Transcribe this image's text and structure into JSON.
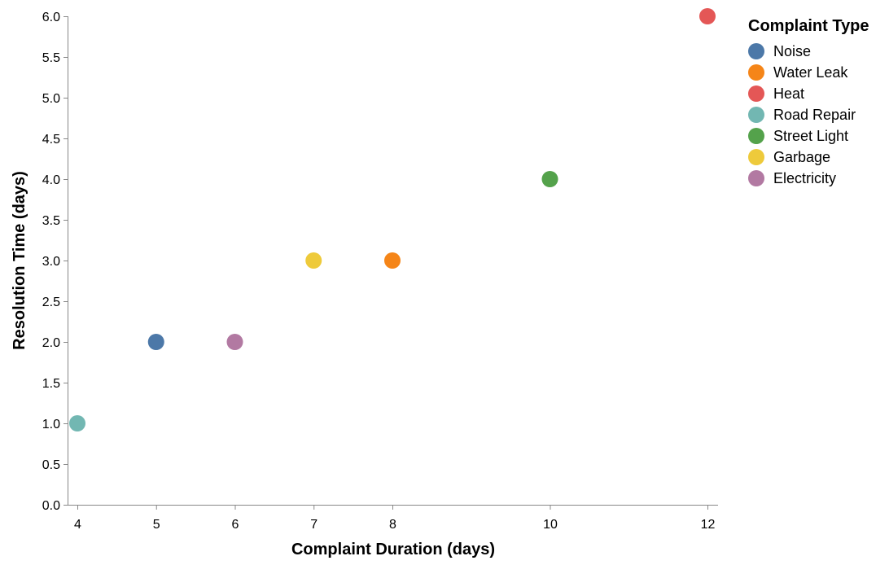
{
  "chart_data": {
    "type": "scatter",
    "xlabel": "Complaint Duration (days)",
    "ylabel": "Resolution Time (days)",
    "xticks": [
      4,
      5,
      6,
      7,
      8,
      10,
      12
    ],
    "yticks": [
      "0.0",
      "0.5",
      "1.0",
      "1.5",
      "2.0",
      "2.5",
      "3.0",
      "3.5",
      "4.0",
      "4.5",
      "5.0",
      "5.5",
      "6.0"
    ],
    "ylim": [
      0,
      6
    ],
    "grid": false,
    "legend": {
      "title": "Complaint Type",
      "placement": "right"
    },
    "series": [
      {
        "name": "Noise",
        "color": "#4c78a8",
        "points": [
          {
            "x": 5,
            "y": 2
          }
        ]
      },
      {
        "name": "Water Leak",
        "color": "#f58518",
        "points": [
          {
            "x": 8,
            "y": 3
          }
        ]
      },
      {
        "name": "Heat",
        "color": "#e45756",
        "points": [
          {
            "x": 12,
            "y": 6
          }
        ]
      },
      {
        "name": "Road Repair",
        "color": "#72b7b2",
        "points": [
          {
            "x": 4,
            "y": 1
          }
        ]
      },
      {
        "name": "Street Light",
        "color": "#54a24b",
        "points": [
          {
            "x": 10,
            "y": 4
          }
        ]
      },
      {
        "name": "Garbage",
        "color": "#eeca3b",
        "points": [
          {
            "x": 7,
            "y": 3
          }
        ]
      },
      {
        "name": "Electricity",
        "color": "#b279a2",
        "points": [
          {
            "x": 6,
            "y": 2
          }
        ]
      }
    ]
  }
}
